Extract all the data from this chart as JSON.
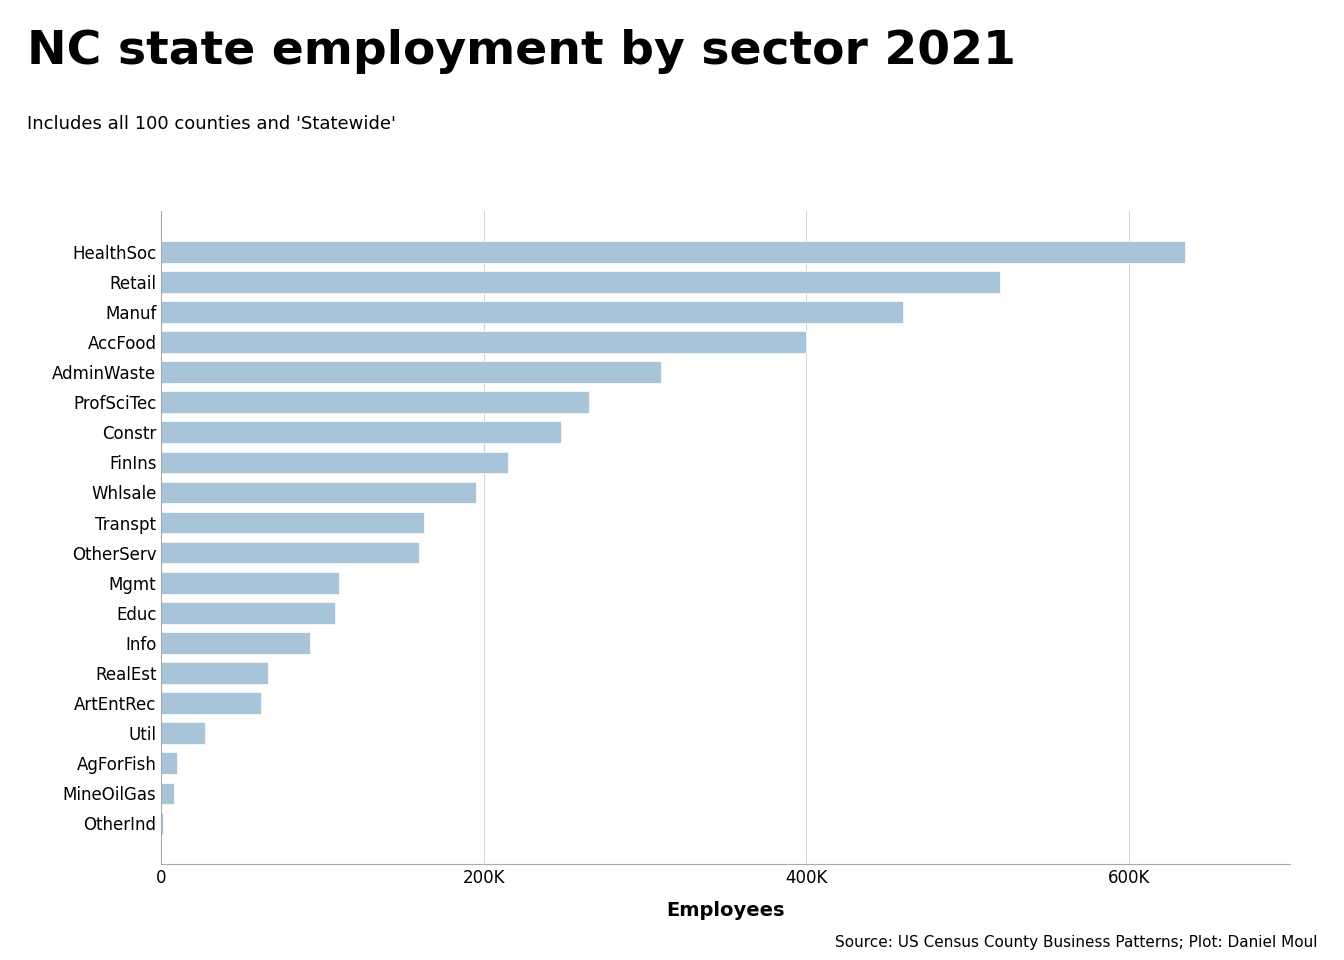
{
  "categories": [
    "HealthSoc",
    "Retail",
    "Manuf",
    "AccFood",
    "AdminWaste",
    "ProfSciTec",
    "Constr",
    "FinIns",
    "Whlsale",
    "Transpt",
    "OtherServ",
    "Mgmt",
    "Educ",
    "Info",
    "RealEst",
    "ArtEntRec",
    "Util",
    "AgForFish",
    "MineOilGas",
    "OtherInd"
  ],
  "values": [
    635000,
    520000,
    460000,
    400000,
    310000,
    265000,
    248000,
    215000,
    195000,
    163000,
    160000,
    110000,
    108000,
    92000,
    66000,
    62000,
    27000,
    10000,
    8000,
    1000
  ],
  "bar_color": "#a8c4d8",
  "title": "NC state employment by sector 2021",
  "subtitle": "Includes all 100 counties and 'Statewide'",
  "xlabel": "Employees",
  "source_text": "Source: US Census County Business Patterns; Plot: Daniel Moul",
  "xlim": [
    0,
    700000
  ],
  "xtick_values": [
    0,
    200000,
    400000,
    600000
  ],
  "xtick_labels": [
    "0",
    "200K",
    "400K",
    "600K"
  ],
  "title_fontsize": 34,
  "subtitle_fontsize": 13,
  "axis_label_fontsize": 14,
  "tick_fontsize": 12,
  "source_fontsize": 11,
  "background_color": "#ffffff",
  "plot_bg_color": "#ffffff"
}
